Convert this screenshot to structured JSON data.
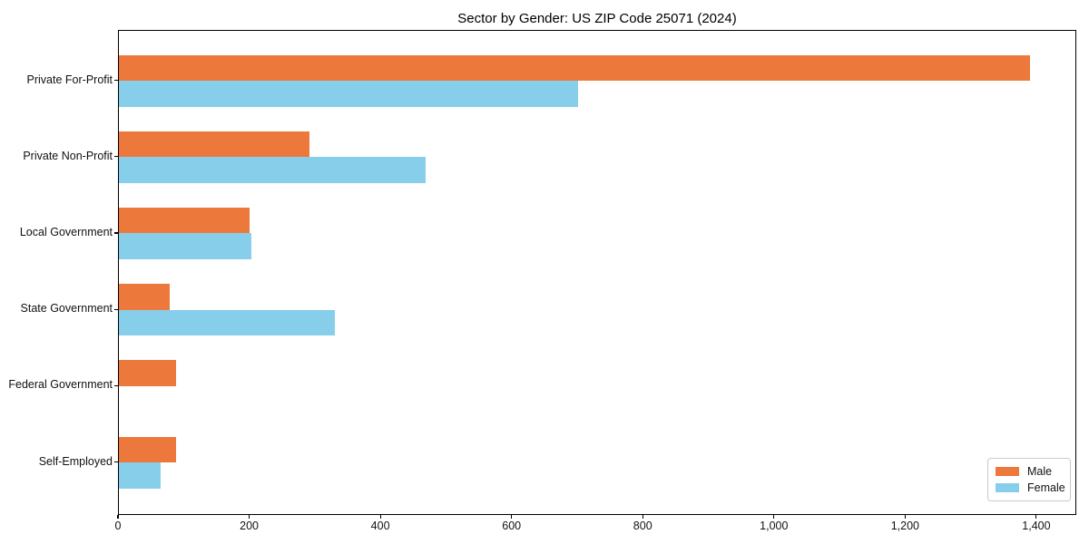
{
  "chart_data": {
    "type": "bar",
    "orientation": "horizontal",
    "title": "Sector by Gender: US ZIP Code 25071 (2024)",
    "categories": [
      "Private For-Profit",
      "Private Non-Profit",
      "Local Government",
      "State Government",
      "Federal Government",
      "Self-Employed"
    ],
    "series": [
      {
        "name": "Male",
        "color": "#EC793B",
        "values": [
          1391,
          291,
          200,
          78,
          88,
          88
        ]
      },
      {
        "name": "Female",
        "color": "#87CEEB",
        "values": [
          702,
          468,
          203,
          330,
          0,
          64
        ]
      }
    ],
    "xlim": [
      0,
      1461
    ],
    "x_ticks": [
      0,
      200,
      400,
      600,
      800,
      1000,
      1200,
      1400
    ],
    "x_tick_labels": [
      "0",
      "200",
      "400",
      "600",
      "800",
      "1,000",
      "1,200",
      "1,400"
    ],
    "grid": false,
    "legend_position": "lower right",
    "colors": {
      "male": "#EC793B",
      "female": "#87CEEB",
      "frame": "#000000",
      "background": "#FFFFFF"
    }
  }
}
